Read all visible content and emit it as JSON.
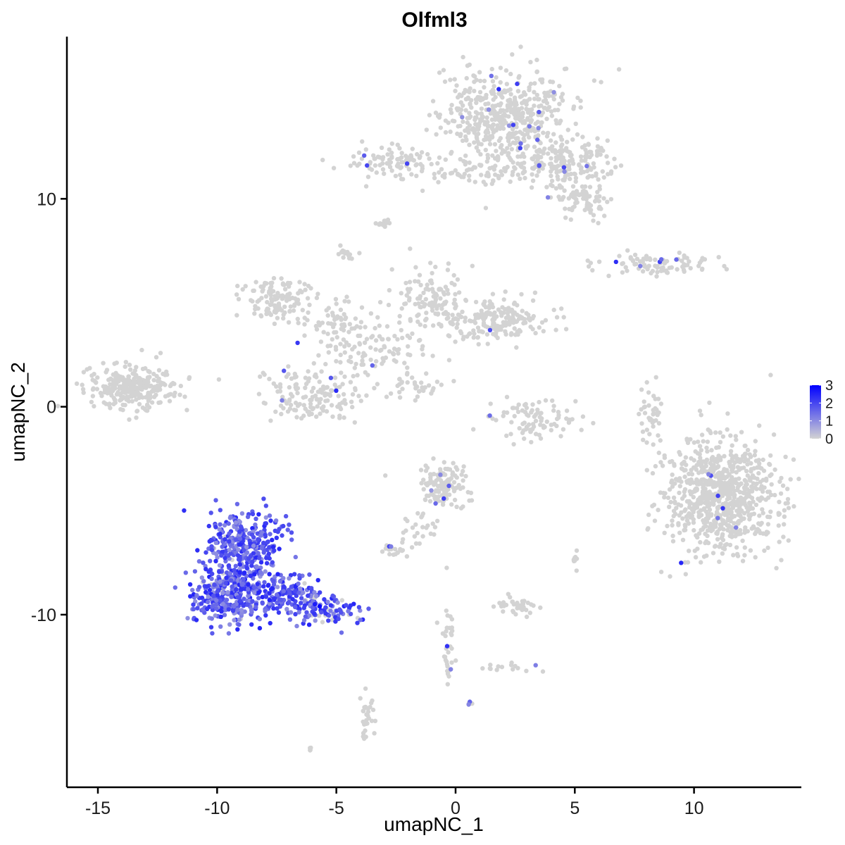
{
  "chart_data": {
    "type": "scatter",
    "title": "Olfml3",
    "xlabel": "umapNC_1",
    "ylabel": "umapNC_2",
    "xlim": [
      -16.3,
      14.5
    ],
    "ylim": [
      -18.3,
      17.8
    ],
    "x_ticks": [
      -15,
      -10,
      -5,
      0,
      5,
      10
    ],
    "y_ticks": [
      -10,
      0,
      10
    ],
    "x_tick_labels": [
      "-15",
      "-10",
      "-5",
      "0",
      "5",
      "10"
    ],
    "y_tick_labels": [
      "-10",
      "0",
      "10"
    ],
    "grid": false,
    "legend": {
      "type": "colorbar",
      "placement": "right",
      "labels": [
        "3",
        "2",
        "1",
        "0"
      ],
      "range": [
        0,
        3
      ],
      "low_color": "#d3d3d3",
      "high_color": "#0000ff"
    },
    "background_color": "#d3d3d3",
    "clusters": [
      {
        "cx": 2.0,
        "cy": 14.0,
        "sx": 1.5,
        "sy": 1.3,
        "n": 520,
        "expr": 0.02
      },
      {
        "cx": 4.4,
        "cy": 11.7,
        "sx": 1.3,
        "sy": 0.7,
        "n": 200,
        "expr": 0.02
      },
      {
        "cx": 5.4,
        "cy": 9.9,
        "sx": 0.6,
        "sy": 0.5,
        "n": 70,
        "expr": 0.03
      },
      {
        "cx": -2.7,
        "cy": 11.8,
        "sx": 0.9,
        "sy": 0.5,
        "n": 90,
        "expr": 0.02
      },
      {
        "cx": 0.8,
        "cy": 11.3,
        "sx": 1.2,
        "sy": 0.4,
        "n": 60,
        "expr": 0.01
      },
      {
        "cx": -3.0,
        "cy": 8.8,
        "sx": 0.2,
        "sy": 0.15,
        "n": 12,
        "expr": 0
      },
      {
        "cx": -4.6,
        "cy": 7.4,
        "sx": 0.2,
        "sy": 0.2,
        "n": 15,
        "expr": 0
      },
      {
        "cx": 8.5,
        "cy": 6.9,
        "sx": 1.3,
        "sy": 0.3,
        "n": 90,
        "expr": 0.03
      },
      {
        "cx": -7.6,
        "cy": 5.2,
        "sx": 0.8,
        "sy": 0.6,
        "n": 120,
        "expr": 0
      },
      {
        "cx": -5.2,
        "cy": 4.0,
        "sx": 1.2,
        "sy": 0.6,
        "n": 70,
        "expr": 0
      },
      {
        "cx": -1.0,
        "cy": 5.2,
        "sx": 0.8,
        "sy": 0.9,
        "n": 120,
        "expr": 0
      },
      {
        "cx": 1.8,
        "cy": 4.2,
        "sx": 1.3,
        "sy": 0.6,
        "n": 190,
        "expr": 0.01
      },
      {
        "cx": -3.3,
        "cy": 2.7,
        "sx": 1.2,
        "sy": 0.8,
        "n": 90,
        "expr": 0.01
      },
      {
        "cx": -13.5,
        "cy": 0.9,
        "sx": 1.1,
        "sy": 0.6,
        "n": 280,
        "expr": 0
      },
      {
        "cx": -6.0,
        "cy": 0.5,
        "sx": 1.3,
        "sy": 0.8,
        "n": 150,
        "expr": 0.05
      },
      {
        "cx": -1.7,
        "cy": 1.0,
        "sx": 0.8,
        "sy": 0.4,
        "n": 35,
        "expr": 0
      },
      {
        "cx": 3.4,
        "cy": -0.6,
        "sx": 1.0,
        "sy": 0.6,
        "n": 90,
        "expr": 0.01
      },
      {
        "cx": 8.2,
        "cy": -0.2,
        "sx": 0.3,
        "sy": 0.7,
        "n": 40,
        "expr": 0
      },
      {
        "cx": 11.1,
        "cy": -4.3,
        "sx": 1.3,
        "sy": 1.6,
        "n": 800,
        "expr": 0.01
      },
      {
        "cx": -0.5,
        "cy": -3.7,
        "sx": 0.6,
        "sy": 0.6,
        "n": 130,
        "expr": 0.03
      },
      {
        "cx": -1.5,
        "cy": -5.9,
        "sx": 0.4,
        "sy": 0.5,
        "n": 25,
        "expr": 0
      },
      {
        "cx": -2.6,
        "cy": -6.9,
        "sx": 0.3,
        "sy": 0.2,
        "n": 22,
        "expr": 0.05
      },
      {
        "cx": -8.8,
        "cy": -6.6,
        "sx": 0.9,
        "sy": 0.9,
        "n": 320,
        "expr": 0.97
      },
      {
        "cx": -9.6,
        "cy": -9.0,
        "sx": 0.9,
        "sy": 0.8,
        "n": 340,
        "expr": 0.97
      },
      {
        "cx": -7.2,
        "cy": -9.0,
        "sx": 1.0,
        "sy": 0.6,
        "n": 180,
        "expr": 0.95
      },
      {
        "cx": -5.2,
        "cy": -9.8,
        "sx": 0.8,
        "sy": 0.4,
        "n": 90,
        "expr": 0.7
      },
      {
        "cx": 2.5,
        "cy": -9.6,
        "sx": 0.5,
        "sy": 0.3,
        "n": 40,
        "expr": 0
      },
      {
        "cx": 5.0,
        "cy": -7.3,
        "sx": 0.1,
        "sy": 0.3,
        "n": 10,
        "expr": 0
      },
      {
        "cx": -0.3,
        "cy": -11.4,
        "sx": 0.2,
        "sy": 1.3,
        "n": 35,
        "expr": 0.03
      },
      {
        "cx": 2.2,
        "cy": -12.5,
        "sx": 0.6,
        "sy": 0.2,
        "n": 15,
        "expr": 0.05
      },
      {
        "cx": -3.7,
        "cy": -14.9,
        "sx": 0.2,
        "sy": 0.8,
        "n": 30,
        "expr": 0.03
      },
      {
        "cx": 0.6,
        "cy": -14.3,
        "sx": 0.05,
        "sy": 0.1,
        "n": 4,
        "expr": 0.5
      },
      {
        "cx": -6.1,
        "cy": -16.4,
        "sx": 0.06,
        "sy": 0.06,
        "n": 4,
        "expr": 0
      }
    ],
    "highlight_points": [
      {
        "x": -5.7,
        "y": -9.6,
        "value": 3.0
      },
      {
        "x": -5.9,
        "y": -9.5,
        "value": 2.6
      },
      {
        "x": -7.8,
        "y": -9.3,
        "value": 2.5
      }
    ]
  }
}
